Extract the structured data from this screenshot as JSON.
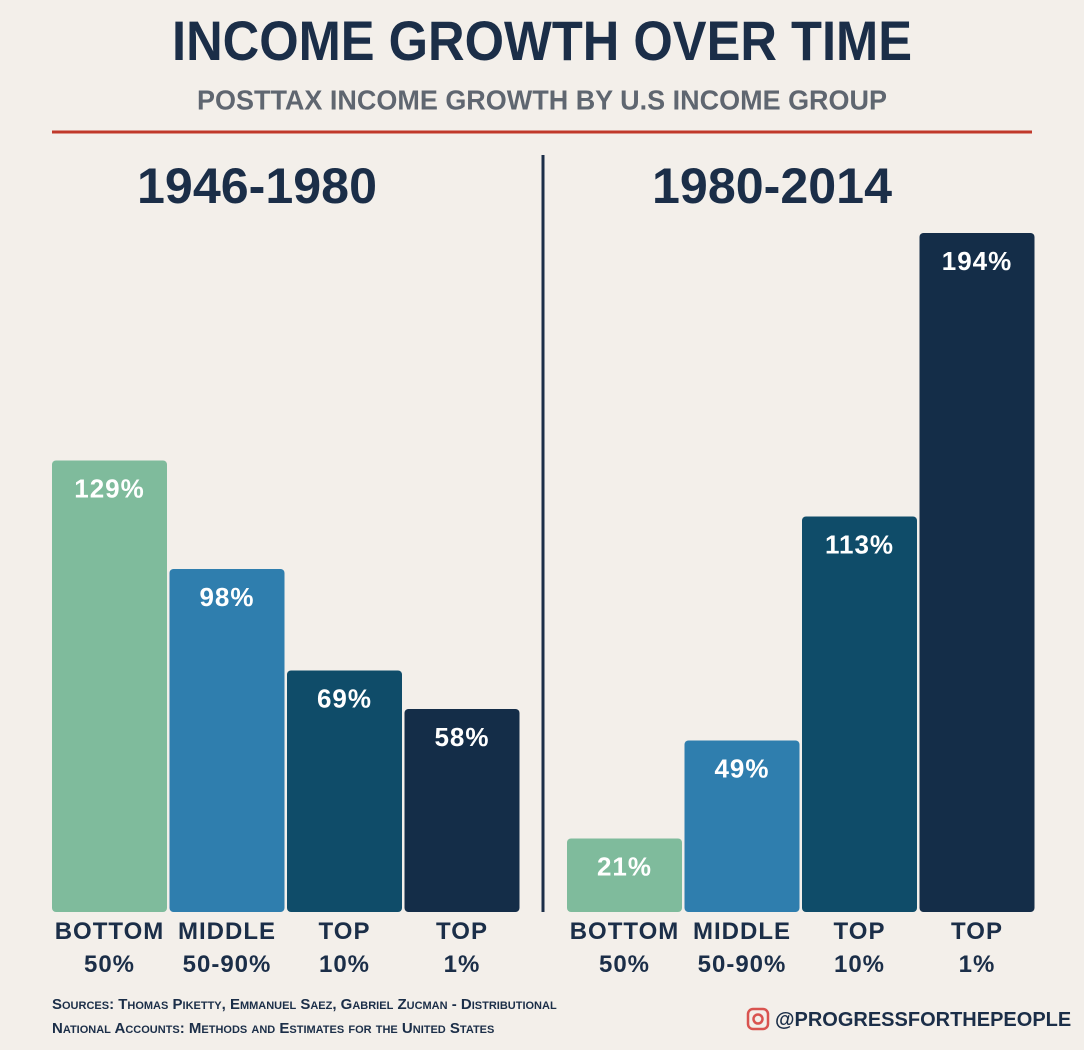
{
  "title": "INCOME GROWTH OVER TIME",
  "subtitle": "POSTTAX INCOME GROWTH BY U.S INCOME GROUP",
  "source": [
    "Sources: Thomas Piketty, Emmanuel Saez, Gabriel Zucman - Distributional",
    "National Accounts: Methods and Estimates for the United States"
  ],
  "credit": "@PROGRESSFORTHEPEOPLE",
  "chart_data": [
    {
      "type": "bar",
      "title": "1946-1980",
      "categories": [
        "BOTTOM 50%",
        "MIDDLE 50-90%",
        "TOP 10%",
        "TOP 1%"
      ],
      "values": [
        129,
        98,
        69,
        58
      ],
      "value_labels": [
        "129%",
        "98%",
        "69%",
        "58%"
      ],
      "colors": [
        "#7fbb9c",
        "#2f7eae",
        "#0f4c69",
        "#142d48"
      ],
      "ylim": [
        0,
        200
      ]
    },
    {
      "type": "bar",
      "title": "1980-2014",
      "categories": [
        "BOTTOM 50%",
        "MIDDLE 50-90%",
        "TOP 10%",
        "TOP 1%"
      ],
      "values": [
        21,
        49,
        113,
        194
      ],
      "value_labels": [
        "21%",
        "49%",
        "113%",
        "194%"
      ],
      "colors": [
        "#7fbb9c",
        "#2f7eae",
        "#0f4c69",
        "#142d48"
      ],
      "ylim": [
        0,
        200
      ]
    }
  ]
}
